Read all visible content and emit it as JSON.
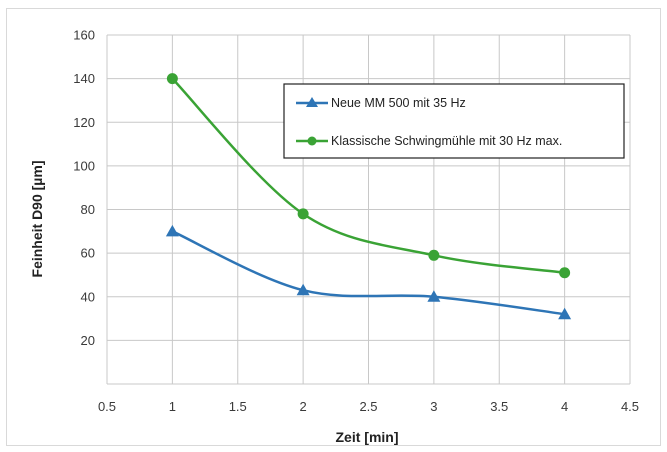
{
  "chart_data": {
    "type": "line",
    "title": "",
    "xlabel": "Zeit [min]",
    "ylabel": "Feinheit D90 [µm]",
    "xlim": [
      0.5,
      4.5
    ],
    "ylim": [
      0,
      160
    ],
    "x_ticks": [
      "0.5",
      "1",
      "1.5",
      "2",
      "2.5",
      "3",
      "3.5",
      "4",
      "4.5"
    ],
    "y_ticks": [
      "20",
      "40",
      "60",
      "80",
      "100",
      "120",
      "140",
      "160"
    ],
    "grid": true,
    "legend_position": "top-right",
    "series": [
      {
        "name": "Neue MM 500 mit 35 Hz",
        "color": "#2e75b6",
        "marker": "triangle",
        "x": [
          1,
          2,
          3,
          4
        ],
        "y": [
          70,
          43,
          40,
          32
        ]
      },
      {
        "name": "Klassische Schwingmühle mit 30 Hz max.",
        "color": "#3aa335",
        "marker": "circle",
        "x": [
          1,
          2,
          3,
          4
        ],
        "y": [
          140,
          78,
          59,
          51
        ]
      }
    ]
  }
}
